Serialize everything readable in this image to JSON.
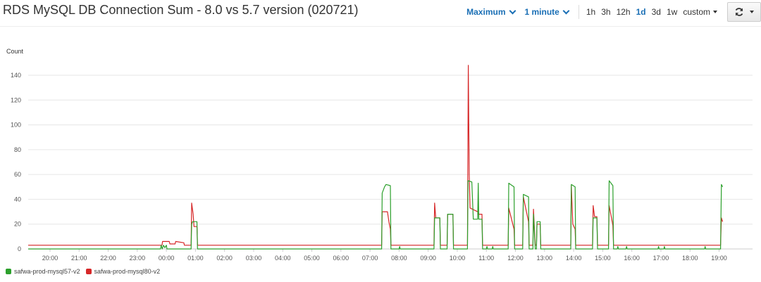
{
  "title": "RDS MySQL DB Connection Sum - 8.0 vs 5.7 version (020721)",
  "toolbar": {
    "statistic": "Maximum",
    "period": "1 minute",
    "ranges": [
      "1h",
      "3h",
      "12h",
      "1d",
      "3d",
      "1w"
    ],
    "active_range": "1d",
    "custom_label": "custom"
  },
  "colors": {
    "green": "#2ca02c",
    "red": "#d62728"
  },
  "icons": {
    "refresh": "refresh-icon",
    "dropdown": "chevron-down-icon"
  },
  "chart_data": {
    "type": "line",
    "ylabel": "Count",
    "ylim": [
      0,
      150
    ],
    "yticks": [
      0,
      20,
      40,
      60,
      80,
      100,
      120,
      140
    ],
    "grid": true,
    "legend_position": "bottom-left",
    "xlim": [
      -0.75,
      24.15
    ],
    "xticks": [
      {
        "pos": 0,
        "label": "20:00"
      },
      {
        "pos": 1,
        "label": "21:00"
      },
      {
        "pos": 2,
        "label": "22:00"
      },
      {
        "pos": 3,
        "label": "23:00"
      },
      {
        "pos": 4,
        "label": "00:00"
      },
      {
        "pos": 5,
        "label": "01:00"
      },
      {
        "pos": 6,
        "label": "02:00"
      },
      {
        "pos": 7,
        "label": "03:00"
      },
      {
        "pos": 8,
        "label": "04:00"
      },
      {
        "pos": 9,
        "label": "05:00"
      },
      {
        "pos": 10,
        "label": "06:00"
      },
      {
        "pos": 11,
        "label": "07:00"
      },
      {
        "pos": 12,
        "label": "08:00"
      },
      {
        "pos": 13,
        "label": "09:00"
      },
      {
        "pos": 14,
        "label": "10:00"
      },
      {
        "pos": 15,
        "label": "11:00"
      },
      {
        "pos": 16,
        "label": "12:00"
      },
      {
        "pos": 17,
        "label": "13:00"
      },
      {
        "pos": 18,
        "label": "14:00"
      },
      {
        "pos": 19,
        "label": "15:00"
      },
      {
        "pos": 20,
        "label": "16:00"
      },
      {
        "pos": 21,
        "label": "17:00"
      },
      {
        "pos": 22,
        "label": "18:00"
      },
      {
        "pos": 23,
        "label": "19:00"
      }
    ],
    "series": [
      {
        "name": "safwa-prod-mysql57-v2",
        "color": "#2ca02c",
        "points": [
          [
            -0.75,
            0
          ],
          [
            3.8,
            0
          ],
          [
            3.82,
            3
          ],
          [
            3.86,
            0
          ],
          [
            3.9,
            3
          ],
          [
            3.95,
            1
          ],
          [
            4.0,
            3
          ],
          [
            4.02,
            0
          ],
          [
            4.85,
            0
          ],
          [
            4.87,
            20
          ],
          [
            4.9,
            22
          ],
          [
            5.05,
            22
          ],
          [
            5.07,
            0
          ],
          [
            11.4,
            0
          ],
          [
            11.42,
            45
          ],
          [
            11.5,
            50
          ],
          [
            11.55,
            52
          ],
          [
            11.7,
            51
          ],
          [
            11.72,
            0
          ],
          [
            12.0,
            0
          ],
          [
            12.02,
            2
          ],
          [
            12.04,
            0
          ],
          [
            13.2,
            0
          ],
          [
            13.22,
            25
          ],
          [
            13.4,
            25
          ],
          [
            13.42,
            0
          ],
          [
            13.65,
            0
          ],
          [
            13.67,
            28
          ],
          [
            13.85,
            28
          ],
          [
            13.87,
            0
          ],
          [
            14.35,
            0
          ],
          [
            14.37,
            55
          ],
          [
            14.5,
            54
          ],
          [
            14.55,
            24
          ],
          [
            14.7,
            24
          ],
          [
            14.72,
            53
          ],
          [
            14.74,
            24
          ],
          [
            14.85,
            24
          ],
          [
            14.87,
            0
          ],
          [
            15.0,
            0
          ],
          [
            15.02,
            2
          ],
          [
            15.04,
            0
          ],
          [
            15.2,
            0
          ],
          [
            15.22,
            2
          ],
          [
            15.24,
            0
          ],
          [
            15.75,
            0
          ],
          [
            15.77,
            53
          ],
          [
            15.95,
            50
          ],
          [
            15.97,
            0
          ],
          [
            16.25,
            0
          ],
          [
            16.27,
            44
          ],
          [
            16.45,
            42
          ],
          [
            16.47,
            0
          ],
          [
            16.6,
            0
          ],
          [
            16.62,
            28
          ],
          [
            16.68,
            0
          ],
          [
            16.72,
            0
          ],
          [
            16.74,
            22
          ],
          [
            16.85,
            22
          ],
          [
            16.87,
            0
          ],
          [
            17.9,
            0
          ],
          [
            17.92,
            52
          ],
          [
            18.05,
            50
          ],
          [
            18.07,
            0
          ],
          [
            18.65,
            0
          ],
          [
            18.67,
            25
          ],
          [
            18.8,
            25
          ],
          [
            18.82,
            0
          ],
          [
            19.2,
            0
          ],
          [
            19.22,
            55
          ],
          [
            19.35,
            51
          ],
          [
            19.37,
            0
          ],
          [
            19.5,
            0
          ],
          [
            19.52,
            2
          ],
          [
            19.54,
            0
          ],
          [
            19.8,
            0
          ],
          [
            19.82,
            2
          ],
          [
            19.84,
            0
          ],
          [
            20.9,
            0
          ],
          [
            20.92,
            2
          ],
          [
            20.94,
            0
          ],
          [
            21.1,
            0
          ],
          [
            21.12,
            2
          ],
          [
            21.14,
            0
          ],
          [
            22.5,
            0
          ],
          [
            22.52,
            2
          ],
          [
            22.54,
            0
          ],
          [
            23.05,
            0
          ],
          [
            23.08,
            52
          ],
          [
            23.12,
            50
          ]
        ]
      },
      {
        "name": "safwa-prod-mysql80-v2",
        "color": "#d62728",
        "points": [
          [
            -0.75,
            3
          ],
          [
            3.85,
            3
          ],
          [
            3.87,
            6
          ],
          [
            4.1,
            6
          ],
          [
            4.12,
            4
          ],
          [
            4.3,
            4
          ],
          [
            4.32,
            6
          ],
          [
            4.6,
            5
          ],
          [
            4.62,
            3
          ],
          [
            4.85,
            3
          ],
          [
            4.87,
            37
          ],
          [
            4.92,
            28
          ],
          [
            4.95,
            18
          ],
          [
            5.05,
            18
          ],
          [
            5.07,
            3
          ],
          [
            11.4,
            3
          ],
          [
            11.42,
            30
          ],
          [
            11.6,
            30
          ],
          [
            11.65,
            22
          ],
          [
            11.7,
            16
          ],
          [
            11.72,
            3
          ],
          [
            13.2,
            3
          ],
          [
            13.22,
            37
          ],
          [
            13.26,
            25
          ],
          [
            13.4,
            25
          ],
          [
            13.42,
            3
          ],
          [
            13.65,
            3
          ],
          [
            13.67,
            28
          ],
          [
            13.85,
            28
          ],
          [
            13.87,
            3
          ],
          [
            14.35,
            3
          ],
          [
            14.38,
            148
          ],
          [
            14.41,
            60
          ],
          [
            14.44,
            33
          ],
          [
            14.7,
            30
          ],
          [
            14.72,
            28
          ],
          [
            14.85,
            28
          ],
          [
            14.87,
            3
          ],
          [
            15.75,
            3
          ],
          [
            15.77,
            33
          ],
          [
            15.95,
            16
          ],
          [
            15.97,
            3
          ],
          [
            16.25,
            3
          ],
          [
            16.27,
            42
          ],
          [
            16.45,
            22
          ],
          [
            16.47,
            3
          ],
          [
            16.6,
            3
          ],
          [
            16.62,
            32
          ],
          [
            16.68,
            3
          ],
          [
            16.72,
            3
          ],
          [
            16.74,
            20
          ],
          [
            16.85,
            20
          ],
          [
            16.87,
            3
          ],
          [
            17.9,
            3
          ],
          [
            17.92,
            51
          ],
          [
            17.97,
            20
          ],
          [
            18.05,
            16
          ],
          [
            18.07,
            3
          ],
          [
            18.65,
            3
          ],
          [
            18.67,
            35
          ],
          [
            18.72,
            26
          ],
          [
            18.8,
            26
          ],
          [
            18.82,
            3
          ],
          [
            19.2,
            3
          ],
          [
            19.22,
            35
          ],
          [
            19.35,
            19
          ],
          [
            19.37,
            3
          ],
          [
            23.05,
            3
          ],
          [
            23.08,
            25
          ],
          [
            23.12,
            22
          ]
        ]
      }
    ]
  }
}
